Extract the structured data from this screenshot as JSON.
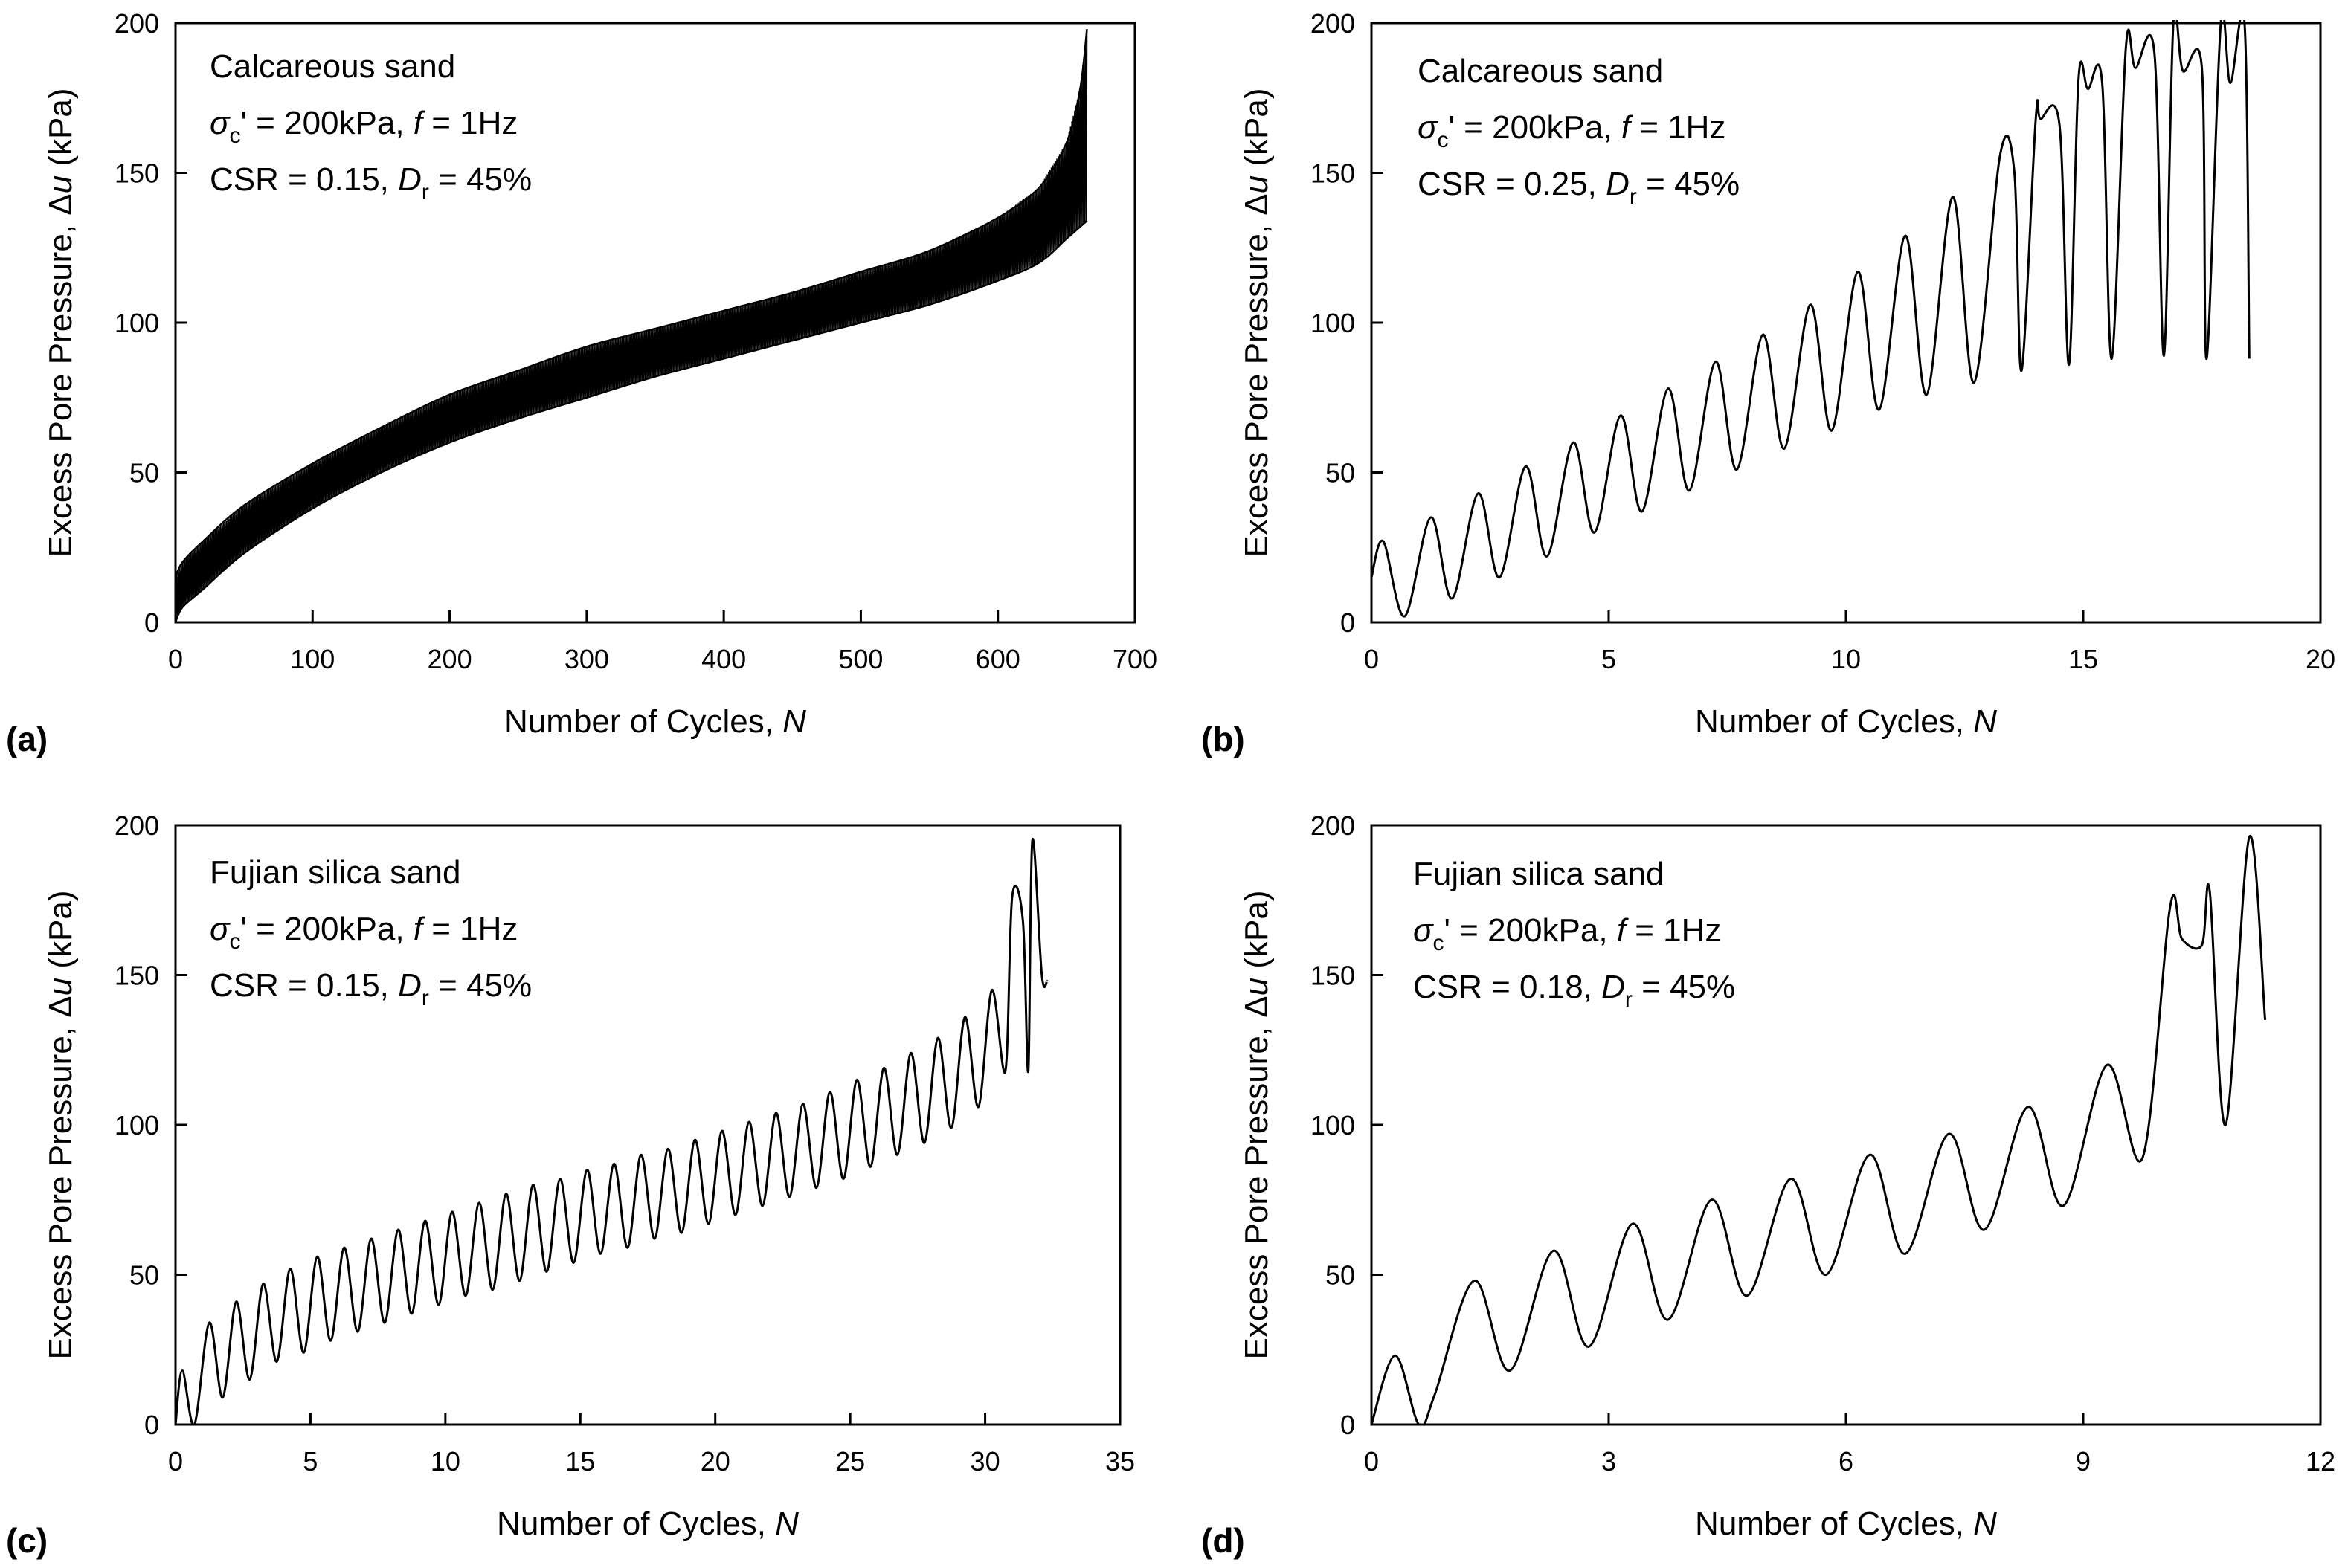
{
  "figure": {
    "panels": [
      "a",
      "b",
      "c",
      "d"
    ]
  },
  "chart_data": [
    {
      "id": "a",
      "type": "line",
      "panel_label": "(a)",
      "xlabel": "Number of Cycles, ",
      "xlabel_var": "N",
      "ylabel": "Excess Pore Pressure, Δ",
      "ylabel_var": "u",
      "ylabel_unit": " (kPa)",
      "xlim": [
        0,
        700
      ],
      "ylim": [
        0,
        200
      ],
      "xticks": [
        0,
        100,
        200,
        300,
        400,
        500,
        600,
        700
      ],
      "yticks": [
        0,
        50,
        100,
        150,
        200
      ],
      "annotation": {
        "material": "Calcareous sand",
        "sigma_sym": "σ",
        "sigma_sub": "c",
        "sigma_rest": "' = 200kPa, ",
        "f_sym": "f",
        "f_rest": " = 1Hz",
        "csr": "CSR = 0.15, ",
        "dr_sym": "D",
        "dr_sub": "r",
        "dr_rest": " = 45%"
      },
      "series": [
        {
          "name": "upper envelope",
          "x": [
            0,
            5,
            20,
            50,
            100,
            150,
            200,
            250,
            300,
            350,
            400,
            450,
            500,
            550,
            600,
            630,
            650,
            660,
            665
          ],
          "y": [
            15,
            20,
            27,
            39,
            53,
            65,
            76,
            84,
            92,
            98,
            104,
            110,
            117,
            124,
            135,
            145,
            160,
            178,
            198
          ]
        },
        {
          "name": "lower envelope",
          "x": [
            0,
            5,
            20,
            50,
            100,
            150,
            200,
            250,
            300,
            350,
            400,
            450,
            500,
            550,
            600,
            630,
            650,
            660,
            665
          ],
          "y": [
            0,
            5,
            11,
            23,
            38,
            50,
            60,
            68,
            75,
            82,
            88,
            94,
            100,
            106,
            114,
            120,
            128,
            132,
            134
          ]
        }
      ]
    },
    {
      "id": "b",
      "type": "line",
      "panel_label": "(b)",
      "xlabel": "Number of Cycles, ",
      "xlabel_var": "N",
      "ylabel": "Excess Pore Pressure, Δ",
      "ylabel_var": "u",
      "ylabel_unit": " (kPa)",
      "xlim": [
        0,
        20
      ],
      "ylim": [
        0,
        200
      ],
      "xticks": [
        0,
        5,
        10,
        15,
        20
      ],
      "yticks": [
        0,
        50,
        100,
        150,
        200
      ],
      "annotation": {
        "material": "Calcareous sand",
        "sigma_sym": "σ",
        "sigma_sub": "c",
        "sigma_rest": "' = 200kPa, ",
        "f_sym": "f",
        "f_rest": " = 1Hz",
        "csr": "CSR = 0.25, ",
        "dr_sym": "D",
        "dr_sub": "r",
        "dr_rest": " = 45%"
      },
      "series": [
        {
          "name": "excess pore pressure",
          "x": [
            0,
            0.25,
            0.7,
            1.25,
            1.7,
            2.25,
            2.7,
            3.25,
            3.7,
            4.25,
            4.7,
            5.25,
            5.7,
            6.25,
            6.7,
            7.25,
            7.7,
            8.25,
            8.7,
            9.25,
            9.7,
            10.25,
            10.7,
            11.25,
            11.7,
            12.25,
            12.7,
            13.25,
            13.55,
            13.7,
            14.0,
            14.1,
            14.5,
            14.7,
            14.9,
            15.1,
            15.4,
            15.6,
            15.9,
            16.1,
            16.5,
            16.7,
            16.9,
            17.1,
            17.5,
            17.6,
            17.9,
            18.1,
            18.4,
            18.5
          ],
          "y": [
            15,
            27,
            2,
            35,
            8,
            43,
            15,
            52,
            22,
            60,
            30,
            69,
            37,
            78,
            44,
            87,
            51,
            96,
            58,
            106,
            64,
            117,
            71,
            129,
            76,
            142,
            80,
            156,
            150,
            84,
            168,
            168,
            166,
            86,
            181,
            178,
            180,
            88,
            192,
            185,
            190,
            89,
            200,
            184,
            185,
            88,
            200,
            180,
            200,
            88
          ]
        }
      ]
    },
    {
      "id": "c",
      "type": "line",
      "panel_label": "(c)",
      "xlabel": "Number of Cycles, ",
      "xlabel_var": "N",
      "ylabel": "Excess Pore Pressure, Δ",
      "ylabel_var": "u",
      "ylabel_unit": " (kPa)",
      "xlim": [
        0,
        35
      ],
      "ylim": [
        0,
        200
      ],
      "xticks": [
        0,
        5,
        10,
        15,
        20,
        25,
        30,
        35
      ],
      "yticks": [
        0,
        50,
        100,
        150,
        200
      ],
      "annotation": {
        "material": "Fujian silica sand",
        "sigma_sym": "σ",
        "sigma_sub": "c",
        "sigma_rest": "' = 200kPa, ",
        "f_sym": "f",
        "f_rest": " = 1Hz",
        "csr": "CSR = 0.15, ",
        "dr_sym": "D",
        "dr_sub": "r",
        "dr_rest": " = 45%"
      },
      "series": [
        {
          "name": "excess pore pressure",
          "x": [
            0,
            0.25,
            0.7,
            1.25,
            1.75,
            2.25,
            2.75,
            3.25,
            3.75,
            4.25,
            4.75,
            5.25,
            5.75,
            6.25,
            6.75,
            7.25,
            7.75,
            8.25,
            8.75,
            9.25,
            9.75,
            10.25,
            10.75,
            11.25,
            11.75,
            12.25,
            12.75,
            13.25,
            13.75,
            14.25,
            14.75,
            15.25,
            15.75,
            16.25,
            16.75,
            17.25,
            17.75,
            18.25,
            18.75,
            19.25,
            19.75,
            20.25,
            20.75,
            21.25,
            21.75,
            22.25,
            22.75,
            23.25,
            23.75,
            24.25,
            24.75,
            25.25,
            25.75,
            26.25,
            26.75,
            27.25,
            27.75,
            28.25,
            28.75,
            29.25,
            29.75,
            30.25,
            30.75,
            31.0,
            31.4,
            31.6,
            31.75,
            32.1,
            32.3
          ],
          "y": [
            0,
            18,
            0,
            34,
            9,
            41,
            15,
            47,
            21,
            52,
            24,
            56,
            28,
            59,
            31,
            62,
            34,
            65,
            37,
            68,
            40,
            71,
            43,
            74,
            45,
            77,
            48,
            80,
            51,
            82,
            54,
            85,
            57,
            87,
            59,
            90,
            62,
            92,
            64,
            95,
            67,
            98,
            70,
            101,
            73,
            104,
            76,
            107,
            79,
            111,
            82,
            115,
            86,
            119,
            90,
            124,
            94,
            129,
            99,
            136,
            106,
            145,
            118,
            176,
            168,
            118,
            195,
            150,
            148
          ]
        }
      ]
    },
    {
      "id": "d",
      "type": "line",
      "panel_label": "(d)",
      "xlabel": "Number of Cycles, ",
      "xlabel_var": "N",
      "ylabel": "Excess Pore Pressure, Δ",
      "ylabel_var": "u",
      "ylabel_unit": " (kPa)",
      "xlim": [
        0,
        12
      ],
      "ylim": [
        0,
        200
      ],
      "xticks": [
        0,
        3,
        6,
        9,
        12
      ],
      "yticks": [
        0,
        50,
        100,
        150,
        200
      ],
      "annotation": {
        "material": "Fujian silica sand",
        "sigma_sym": "σ",
        "sigma_sub": "c",
        "sigma_rest": "' = 200kPa, ",
        "f_sym": "f",
        "f_rest": " = 1Hz",
        "csr": "CSR = 0.18, ",
        "dr_sym": "D",
        "dr_sub": "r",
        "dr_rest": " = 45%"
      },
      "series": [
        {
          "name": "excess pore pressure",
          "x": [
            0,
            0.3,
            0.6,
            0.8,
            1.3,
            1.75,
            2.3,
            2.75,
            3.3,
            3.75,
            4.3,
            4.75,
            5.3,
            5.75,
            6.3,
            6.75,
            7.3,
            7.75,
            8.3,
            8.75,
            9.3,
            9.75,
            10.1,
            10.25,
            10.5,
            10.6,
            10.8,
            11.1,
            11.3
          ],
          "y": [
            0,
            23,
            0,
            10,
            48,
            18,
            58,
            26,
            67,
            35,
            75,
            43,
            82,
            50,
            90,
            57,
            97,
            65,
            106,
            73,
            120,
            89,
            173,
            162,
            160,
            178,
            100,
            196,
            135
          ]
        }
      ]
    }
  ]
}
